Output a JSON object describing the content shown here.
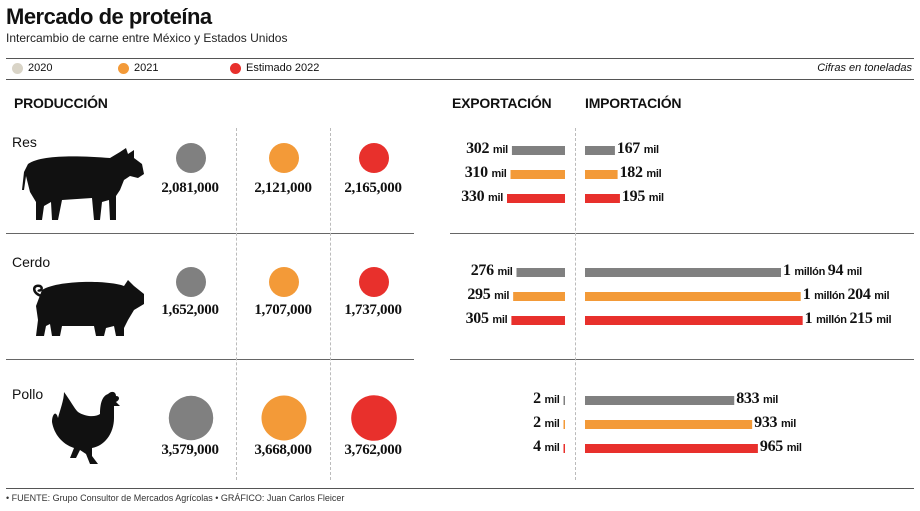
{
  "header": {
    "title": "Mercado de proteína",
    "subtitle": "Intercambio de carne entre México y Estados Unidos",
    "unit_note": "Cifras en toneladas"
  },
  "legend": [
    {
      "label": "2020",
      "color": "#d9d4c7"
    },
    {
      "label": "2021",
      "color": "#f39a38"
    },
    {
      "label": "Estimado 2022",
      "color": "#e8302c"
    }
  ],
  "columns": {
    "production": "PRODUCCIÓN",
    "exports": "EXPORTACIÓN",
    "imports": "IMPORTACIÓN"
  },
  "footer": "• FUENTE: Grupo Consultor de Mercados Agrícolas • GRÁFICO: Juan Carlos Fleicer",
  "chart_data": {
    "type": "bar",
    "series_colors": [
      "#808080",
      "#f39a38",
      "#e8302c"
    ],
    "series_years": [
      "2020",
      "2021",
      "Estimado 2022"
    ],
    "unit_word": "mil",
    "animals": [
      {
        "name": "Res",
        "icon": "cow-icon",
        "production": [
          2081000,
          2121000,
          2165000
        ],
        "production_labels": [
          "2,081,000",
          "2,121,000",
          "2,165,000"
        ],
        "exports": [
          302000,
          310000,
          330000
        ],
        "export_labels": [
          {
            "num": "302",
            "unit": "mil"
          },
          {
            "num": "310",
            "unit": "mil"
          },
          {
            "num": "330",
            "unit": "mil"
          }
        ],
        "imports": [
          167000,
          182000,
          195000
        ],
        "import_labels": [
          {
            "num": "167",
            "unit": "mil"
          },
          {
            "num": "182",
            "unit": "mil"
          },
          {
            "num": "195",
            "unit": "mil"
          }
        ]
      },
      {
        "name": "Cerdo",
        "icon": "pig-icon",
        "production": [
          1652000,
          1707000,
          1737000
        ],
        "production_labels": [
          "1,652,000",
          "1,707,000",
          "1,737,000"
        ],
        "exports": [
          276000,
          295000,
          305000
        ],
        "export_labels": [
          {
            "num": "276",
            "unit": "mil"
          },
          {
            "num": "295",
            "unit": "mil"
          },
          {
            "num": "305",
            "unit": "mil"
          }
        ],
        "imports": [
          1094000,
          1204000,
          1215000
        ],
        "import_labels": [
          {
            "pre": "1",
            "mid": "millón",
            "num": "94",
            "unit": "mil"
          },
          {
            "pre": "1",
            "mid": "millón",
            "num": "204",
            "unit": "mil"
          },
          {
            "pre": "1",
            "mid": "millón",
            "num": "215",
            "unit": "mil"
          }
        ]
      },
      {
        "name": "Pollo",
        "icon": "chicken-icon",
        "production": [
          3579000,
          3668000,
          3762000
        ],
        "production_labels": [
          "3,579,000",
          "3,668,000",
          "3,762,000"
        ],
        "exports": [
          2000,
          2000,
          4000
        ],
        "export_labels": [
          {
            "num": "2",
            "unit": "mil"
          },
          {
            "num": "2",
            "unit": "mil"
          },
          {
            "num": "4",
            "unit": "mil"
          }
        ],
        "imports": [
          833000,
          933000,
          965000
        ],
        "import_labels": [
          {
            "num": "833",
            "unit": "mil"
          },
          {
            "num": "933",
            "unit": "mil"
          },
          {
            "num": "965",
            "unit": "mil"
          }
        ]
      }
    ]
  }
}
